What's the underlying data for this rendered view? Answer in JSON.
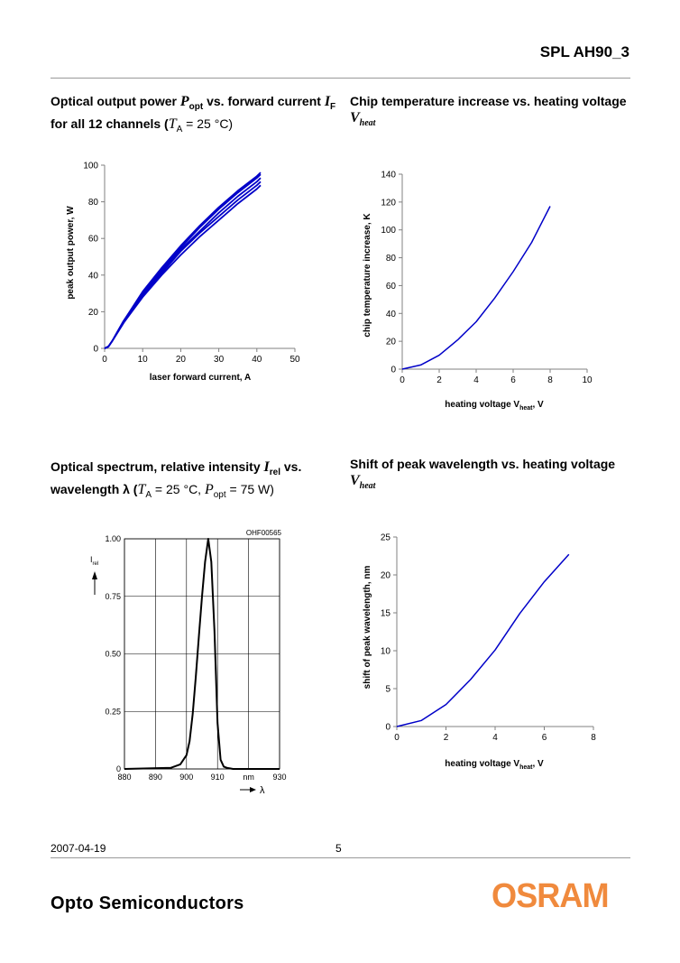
{
  "header": {
    "doc_id": "SPL AH90_3"
  },
  "captions": {
    "c1": {
      "t1": "Optical output power ",
      "p": "P",
      "opt": "opt",
      "t2": " vs. forward current ",
      "i": "I",
      "f": "F",
      "t3": "for all 12 channels (",
      "ta": "T",
      "a": "A",
      "t4": " = 25 °C)"
    },
    "c2": {
      "t1": "Chip temperature increase vs. heating voltage",
      "v": "V",
      "heat": "heat"
    },
    "c3": {
      "t1": "Optical  spectrum,  relative  intensity  ",
      "i": "I",
      "rel": "rel",
      "t2": "  vs.",
      "t3": "wavelength λ (",
      "ta": "T",
      "a": "A",
      "t4": " = 25 °C, ",
      "p": "P",
      "opt": "opt",
      "t5": " = 75 W)"
    },
    "c4": {
      "t1": "Shift of peak wavelength vs. heating voltage",
      "v": "V",
      "heat": "heat"
    }
  },
  "footer": {
    "date": "2007-04-19",
    "page": "5",
    "brand": "Opto Semiconductors",
    "logo": "OSRAM"
  },
  "colors": {
    "series": "#0000c8",
    "grid": "#000000",
    "logo": "#f08a3d"
  },
  "chart_data": [
    {
      "type": "line",
      "xlabel": "laser forward current, A",
      "ylabel": "peak output power, W",
      "xlim": [
        0,
        50
      ],
      "ylim": [
        0,
        100
      ],
      "xticks": [
        0,
        10,
        20,
        30,
        40,
        50
      ],
      "yticks": [
        0,
        20,
        40,
        60,
        80,
        100
      ],
      "grid": false,
      "series": [
        {
          "x": [
            0,
            1,
            2,
            5,
            10,
            15,
            20,
            25,
            30,
            35,
            40,
            41
          ],
          "y": [
            0,
            1,
            4,
            14,
            28,
            40,
            51,
            61,
            70,
            79,
            87,
            89
          ]
        },
        {
          "x": [
            0,
            1,
            2,
            5,
            10,
            15,
            20,
            25,
            30,
            35,
            40,
            41
          ],
          "y": [
            0,
            1,
            4,
            14,
            29,
            41,
            53,
            63,
            72,
            81,
            89,
            91
          ]
        },
        {
          "x": [
            0,
            1,
            2,
            5,
            10,
            15,
            20,
            25,
            30,
            35,
            40,
            41
          ],
          "y": [
            0,
            1,
            4,
            15,
            30,
            42,
            54,
            64,
            74,
            83,
            91,
            93
          ]
        },
        {
          "x": [
            0,
            1,
            2,
            5,
            10,
            15,
            20,
            25,
            30,
            35,
            40,
            41
          ],
          "y": [
            0,
            1,
            4,
            15,
            30,
            43,
            55,
            66,
            76,
            85,
            93,
            95
          ]
        },
        {
          "x": [
            0,
            1,
            2,
            5,
            10,
            15,
            20,
            25,
            30,
            35,
            40,
            41
          ],
          "y": [
            0,
            1,
            4,
            15,
            31,
            44,
            56,
            67,
            77,
            86,
            94,
            96
          ]
        }
      ]
    },
    {
      "type": "line",
      "xlabel_main": "heating voltage V",
      "xlabel_sub": "heat",
      "xlabel_tail": ", V",
      "ylabel": "chip temperature increase, K",
      "xlim": [
        0,
        10
      ],
      "ylim": [
        0,
        140
      ],
      "xticks": [
        0,
        2,
        4,
        6,
        8,
        10
      ],
      "yticks": [
        0,
        20,
        40,
        60,
        80,
        100,
        120,
        140
      ],
      "grid": false,
      "series": [
        {
          "x": [
            0,
            1,
            2,
            3,
            4,
            5,
            6,
            7,
            8
          ],
          "y": [
            0,
            3,
            10,
            21,
            34,
            51,
            70,
            91,
            117
          ]
        }
      ]
    },
    {
      "type": "line",
      "code": "OHF00565",
      "ylabel_main": "I",
      "ylabel_sub": "rel",
      "xunit": "nm",
      "xlabel": "λ",
      "xlim": [
        880,
        930
      ],
      "ylim": [
        0,
        1
      ],
      "xtick_labels": [
        "880",
        "890",
        "900",
        "910",
        "nm",
        "930"
      ],
      "ytick_labels": [
        "0",
        "0.25",
        "0.50",
        "0.75",
        "1.00"
      ],
      "grid": true,
      "series": [
        {
          "x": [
            880,
            895,
            898,
            900,
            901,
            902,
            903,
            904,
            905,
            906,
            907,
            908,
            909,
            910,
            911,
            912,
            913,
            915,
            930
          ],
          "y": [
            0,
            0.005,
            0.02,
            0.06,
            0.12,
            0.24,
            0.4,
            0.58,
            0.75,
            0.9,
            1.0,
            0.9,
            0.6,
            0.2,
            0.04,
            0.01,
            0.005,
            0,
            0
          ]
        }
      ]
    },
    {
      "type": "line",
      "xlabel_main": "heating voltage  V",
      "xlabel_sub": "heat",
      "xlabel_tail": ", V",
      "ylabel": "shift of peak wavelength, nm",
      "xlim": [
        0,
        8
      ],
      "ylim": [
        0,
        25
      ],
      "xticks": [
        0,
        2,
        4,
        6,
        8
      ],
      "yticks": [
        0,
        5,
        10,
        15,
        20,
        25
      ],
      "grid": false,
      "series": [
        {
          "x": [
            0,
            1,
            2,
            3,
            4,
            5,
            6,
            7
          ],
          "y": [
            0,
            0.8,
            2.9,
            6.2,
            10.1,
            14.9,
            19.1,
            22.7
          ]
        }
      ]
    }
  ]
}
